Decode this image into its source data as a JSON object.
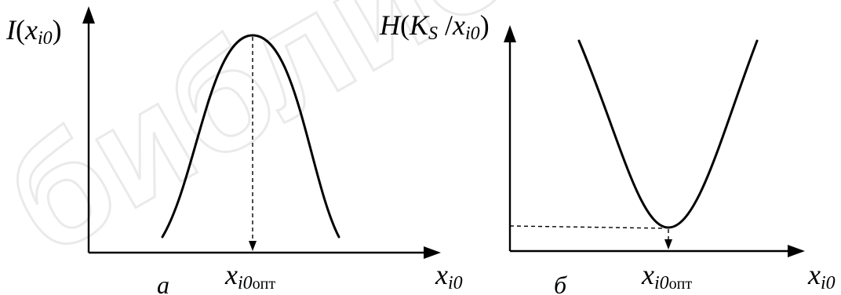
{
  "watermark": {
    "text": "библиот"
  },
  "panel_a": {
    "ylabel_main": "I",
    "ylabel_open": "(",
    "ylabel_var": "x",
    "ylabel_sub": "i0",
    "ylabel_close": ")",
    "peak_label_var": "x",
    "peak_label_sub_i0": "i0",
    "peak_label_sub_opt": "опт",
    "xlabel_var": "x",
    "xlabel_sub": "i0",
    "caption": "a"
  },
  "panel_b": {
    "ylabel_main": "H",
    "ylabel_open": "(",
    "ylabel_K": "K",
    "ylabel_K_sub": "S",
    "ylabel_slash": " /",
    "ylabel_var": "x",
    "ylabel_sub": "i0",
    "ylabel_close": ")",
    "min_label_var": "x",
    "min_label_sub_i0": "i0",
    "min_label_sub_opt": "опт",
    "xlabel_var": "x",
    "xlabel_sub": "i0",
    "caption": "б"
  }
}
